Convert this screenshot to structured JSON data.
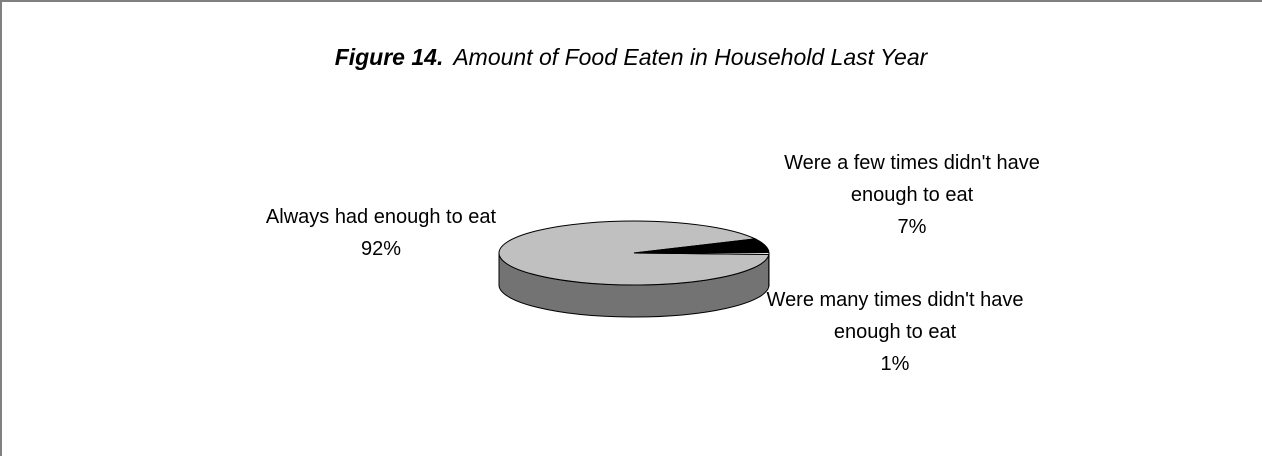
{
  "chart_data": {
    "type": "pie3d",
    "title_label": "Figure 14.",
    "title": "Amount of Food Eaten in Household Last Year",
    "categories": [
      "Always had enough to eat",
      "Were a few times didn't have enough to eat",
      "Were many times didn't have enough to eat"
    ],
    "values": [
      92,
      7,
      1
    ],
    "value_labels": [
      "92%",
      "7%",
      "1%"
    ],
    "colors": [
      "#c0c0c0",
      "#000000",
      "#ffffcc"
    ]
  }
}
